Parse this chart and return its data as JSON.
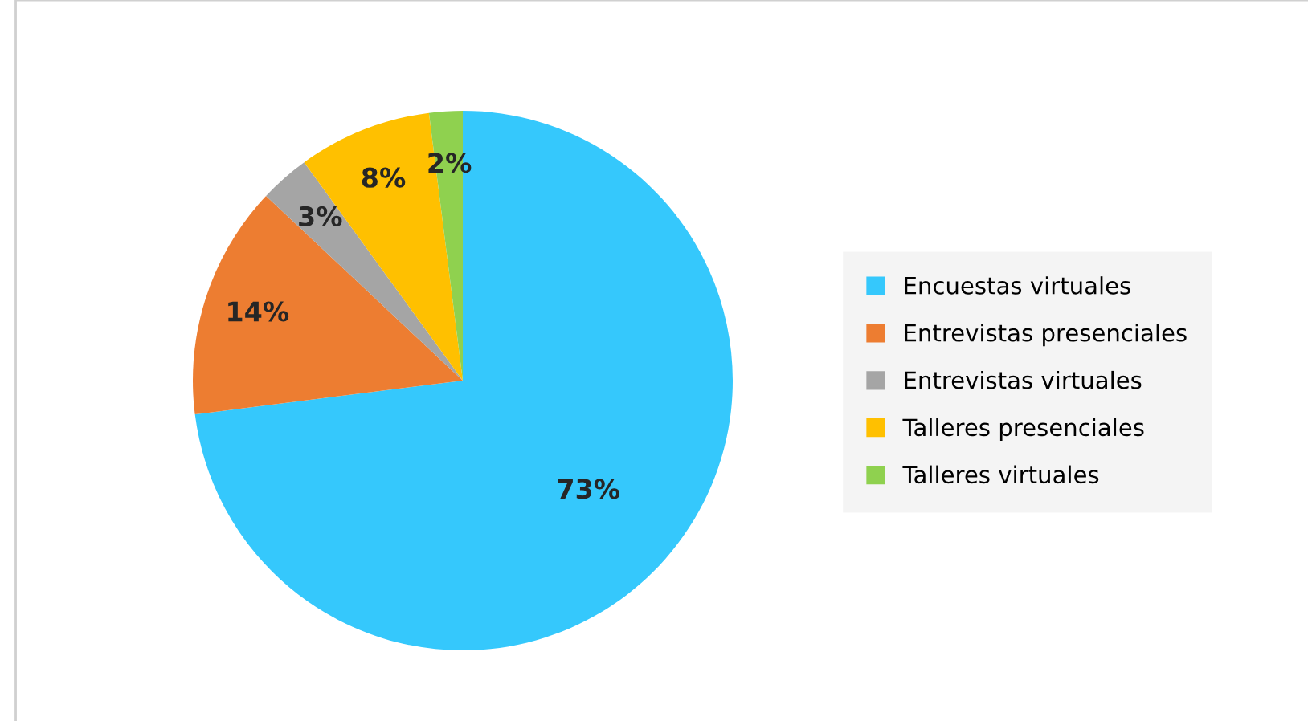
{
  "chart_data": {
    "type": "pie",
    "categories": [
      "Encuestas virtuales",
      "Entrevistas presenciales",
      "Entrevistas virtuales",
      "Talleres presenciales",
      "Talleres virtuales"
    ],
    "values": [
      73,
      14,
      3,
      8,
      2
    ],
    "colors": [
      "#35c8fc",
      "#ed7d31",
      "#a5a5a5",
      "#ffc000",
      "#8fd14f"
    ],
    "value_labels": [
      "73%",
      "14%",
      "3%",
      "8%",
      "2%"
    ],
    "legend": "right"
  }
}
